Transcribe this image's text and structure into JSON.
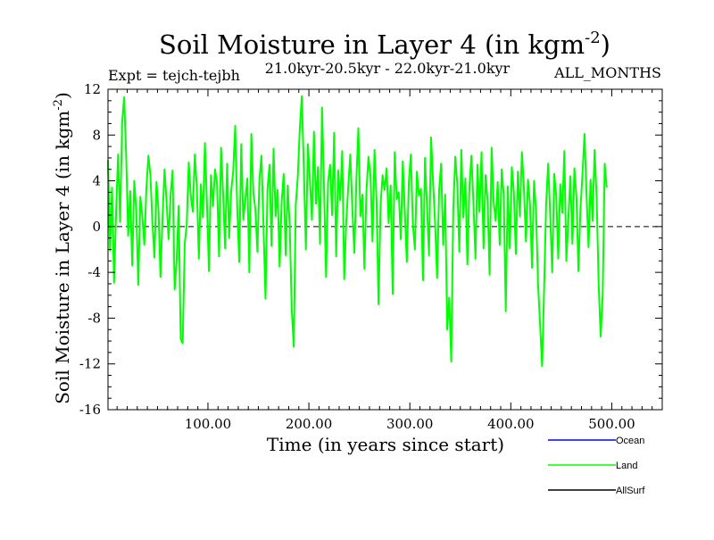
{
  "chart_data": {
    "type": "line",
    "title": "Soil Moisture in Layer 4 (in kgm",
    "title_sup": "-2",
    "title_close": ")",
    "subtitle_left": "Expt = tejch-tejbh",
    "subtitle_center": "21.0kyr-20.5kyr - 22.0kyr-21.0kyr",
    "subtitle_right": "ALL_MONTHS",
    "xlabel": "Time (in years since start)",
    "ylabel": "Soil Moisture in Layer 4 (in kgm",
    "ylabel_sup": "-2",
    "ylabel_close": ")",
    "xlim": [
      1,
      550
    ],
    "ylim": [
      -16,
      12
    ],
    "xticks": [
      100,
      200,
      300,
      400,
      500
    ],
    "xtick_labels": [
      "100.00",
      "200.00",
      "300.00",
      "400.00",
      "500.00"
    ],
    "yticks": [
      -16,
      -12,
      -8,
      -4,
      0,
      4,
      8,
      12
    ],
    "ytick_labels": [
      "-16",
      "-12",
      "-8",
      "-4",
      "0",
      "4",
      "8",
      "12"
    ],
    "zero_line": true,
    "legend": [
      {
        "name": "Ocean",
        "color": "#0000ff"
      },
      {
        "name": "Land",
        "color": "#00ff00"
      },
      {
        "name": "AllSurf",
        "color": "#000000"
      }
    ],
    "series": [
      {
        "name": "Land",
        "color": "#00ff00",
        "x_start": 1,
        "x_step": 2,
        "values": [
          5.8,
          -2.1,
          3.4,
          -4.9,
          1.2,
          6.3,
          0.4,
          9.1,
          11.3,
          6.2,
          -0.8,
          3.1,
          -3.4,
          4.0,
          1.4,
          -5.1,
          2.6,
          0.9,
          -1.6,
          3.3,
          6.2,
          4.5,
          0.3,
          -2.7,
          3.9,
          1.5,
          -4.4,
          0.7,
          5.0,
          2.2,
          -1.1,
          2.8,
          4.9,
          -5.5,
          -3.0,
          1.8,
          -9.8,
          -10.2,
          -1.5,
          0.2,
          5.6,
          2.7,
          1.3,
          6.3,
          3.4,
          -2.8,
          3.7,
          0.8,
          7.3,
          2.1,
          -3.9,
          4.5,
          1.8,
          5.0,
          3.8,
          -2.6,
          6.9,
          2.9,
          -1.9,
          5.5,
          -1.0,
          3.1,
          4.8,
          8.8,
          1.7,
          -3.1,
          7.2,
          0.6,
          2.3,
          4.2,
          -4.0,
          8.1,
          2.9,
          1.5,
          -2.2,
          4.1,
          6.2,
          0.1,
          -6.3,
          3.3,
          5.4,
          -1.7,
          6.8,
          0.9,
          3.2,
          -3.5,
          2.1,
          4.6,
          -2.5,
          3.6,
          0.0,
          -7.2,
          -10.5,
          1.9,
          4.4,
          8.6,
          11.4,
          5.0,
          -2.0,
          7.2,
          4.1,
          0.6,
          8.3,
          2.0,
          5.2,
          -1.5,
          10.4,
          3.4,
          -4.4,
          3.9,
          5.4,
          1.0,
          8.2,
          -2.6,
          4.9,
          2.3,
          6.6,
          -4.6,
          0.4,
          3.5,
          6.3,
          1.6,
          -2.3,
          4.0,
          8.6,
          0.9,
          2.8,
          -3.7,
          3.1,
          6.1,
          4.5,
          -1.3,
          6.7,
          2.3,
          -6.8,
          1.9,
          4.5,
          3.2,
          5.1,
          0.3,
          3.6,
          -5.9,
          6.5,
          2.4,
          3.0,
          -1.1,
          5.7,
          1.4,
          -3.1,
          3.9,
          6.3,
          0.2,
          -2.0,
          4.8,
          2.7,
          3.3,
          -4.7,
          6.0,
          1.7,
          -2.5,
          7.8,
          3.9,
          0.3,
          -4.5,
          3.2,
          5.5,
          -1.6,
          2.8,
          -9.0,
          -6.2,
          -11.8,
          1.5,
          6.1,
          3.7,
          -2.2,
          6.7,
          0.8,
          4.2,
          -3.3,
          3.5,
          6.2,
          2.0,
          -2.8,
          5.4,
          1.3,
          6.5,
          -1.9,
          4.5,
          2.3,
          -4.2,
          6.9,
          2.2,
          0.5,
          3.9,
          -1.6,
          5.0,
          2.7,
          -7.4,
          3.5,
          -1.9,
          5.2,
          3.0,
          -2.4,
          4.8,
          0.9,
          6.5,
          3.4,
          -1.3,
          4.1,
          2.0,
          -3.6,
          4.0,
          1.4,
          -5.1,
          -8.5,
          -12.2,
          -5.4,
          2.0,
          5.5,
          1.1,
          -4.0,
          4.6,
          2.7,
          -2.8,
          3.7,
          1.2,
          6.6,
          -3.0,
          0.6,
          4.4,
          -1.5,
          5.1,
          2.6,
          -3.9,
          1.6,
          4.6,
          8.1,
          2.8,
          -1.8,
          4.1,
          0.5,
          6.7,
          2.6,
          -5.0,
          -9.6,
          -6.0,
          5.5,
          3.4
        ]
      },
      {
        "name": "Ocean",
        "color": "#0000ff",
        "values": []
      },
      {
        "name": "AllSurf",
        "color": "#000000",
        "values": []
      }
    ]
  }
}
